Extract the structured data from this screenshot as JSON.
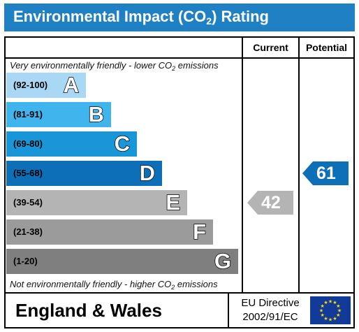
{
  "title": {
    "main": "Environmental Impact (CO",
    "sub": "2",
    "tail": ") Rating"
  },
  "columns": {
    "current": "Current",
    "potential": "Potential"
  },
  "top_note": {
    "main": "Very environmentally friendly - lower CO",
    "sub": "2",
    "tail": " emissions"
  },
  "bottom_note": {
    "main": "Not environmentally friendly - higher CO",
    "sub": "2",
    "tail": " emissions"
  },
  "chart_data": {
    "type": "bar",
    "title": "Environmental Impact (CO2) Rating",
    "categories": [
      "A",
      "B",
      "C",
      "D",
      "E",
      "F",
      "G"
    ],
    "ranges": [
      "(92-100)",
      "(81-91)",
      "(69-80)",
      "(55-68)",
      "(39-54)",
      "(21-38)",
      "(1-20)"
    ],
    "colors": [
      "#a9d8f5",
      "#40b4ec",
      "#1996d8",
      "#0d6fb8",
      "#b4b4b4",
      "#9b9b9b",
      "#7f7f7f"
    ],
    "current": {
      "value": 42,
      "band": "E",
      "color": "#b4b4b4"
    },
    "potential": {
      "value": 61,
      "band": "D",
      "color": "#0d6fb8"
    }
  },
  "footer": {
    "region": "England & Wales",
    "directive_line1": "EU Directive",
    "directive_line2": "2002/91/EC"
  }
}
